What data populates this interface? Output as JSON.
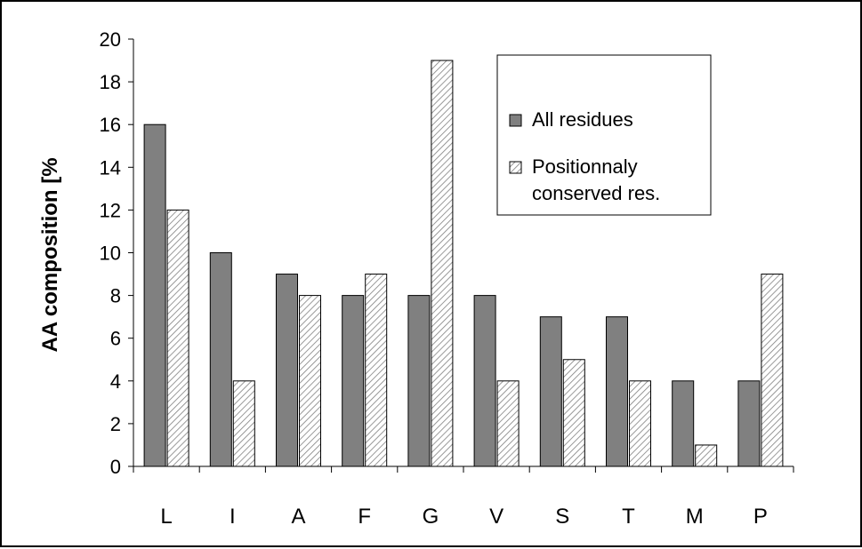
{
  "chart_data": {
    "type": "bar",
    "title": "",
    "xlabel": "",
    "ylabel": "AA composition [%",
    "ylim": [
      0,
      20
    ],
    "yticks": [
      0,
      2,
      4,
      6,
      8,
      10,
      12,
      14,
      16,
      18,
      20
    ],
    "categories": [
      "L",
      "I",
      "A",
      "F",
      "G",
      "V",
      "S",
      "T",
      "M",
      "P"
    ],
    "series": [
      {
        "name": "All residues",
        "values": [
          16,
          10,
          9,
          8,
          8,
          8,
          7,
          7,
          4,
          4
        ],
        "color": "#808080",
        "pattern": "solid"
      },
      {
        "name": "Positionnaly conserved res.",
        "values": [
          12,
          4,
          8,
          9,
          19,
          4,
          5,
          4,
          1,
          9
        ],
        "color": "#ffffff",
        "pattern": "hatched"
      }
    ],
    "grid": false,
    "legend": {
      "placement": "top-right",
      "entries": [
        {
          "line1": "All residues",
          "line2": ""
        },
        {
          "line1": "Positionnaly",
          "line2": "conserved res."
        }
      ]
    }
  }
}
